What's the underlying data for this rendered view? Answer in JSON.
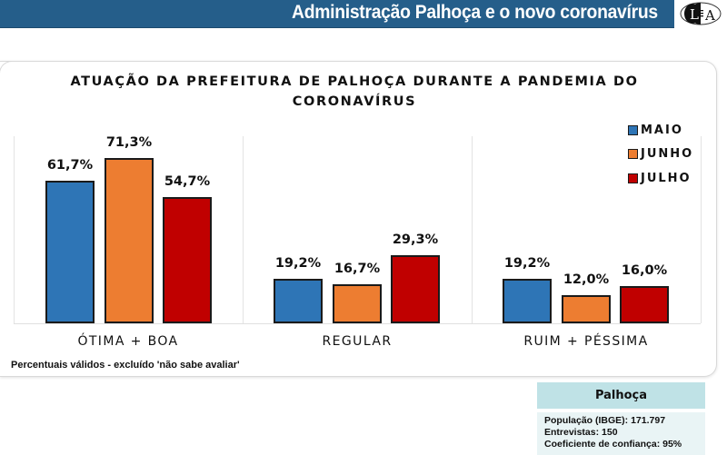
{
  "header": {
    "title": "Administração Palhoça e o novo coronavírus",
    "logo_text": "LEA",
    "bar_color": "#255e8a"
  },
  "chart_data": {
    "type": "bar",
    "title": "ATUAÇÃO DA PREFEITURA DE PALHOÇA DURANTE A PANDEMIA DO CORONAVÍRUS",
    "title_lines": [
      "ATUAÇÃO DA PREFEITURA DE PALHOÇA DURANTE A PANDEMIA DO",
      "CORONAVÍRUS"
    ],
    "categories": [
      "ÓTIMA + BOA",
      "REGULAR",
      "RUIM + PÉSSIMA"
    ],
    "series": [
      {
        "name": "MAIO",
        "color": "#2e75b6",
        "values": [
          61.7,
          19.2,
          19.2
        ],
        "labels": [
          "61,7%",
          "19,2%",
          "19,2%"
        ]
      },
      {
        "name": "JUNHO",
        "color": "#ed7d31",
        "values": [
          71.3,
          16.7,
          12.0
        ],
        "labels": [
          "71,3%",
          "16,7%",
          "12,0%"
        ]
      },
      {
        "name": "JULHO",
        "color": "#c00000",
        "values": [
          54.7,
          29.3,
          16.0
        ],
        "labels": [
          "54,7%",
          "29,3%",
          "16,0%"
        ]
      }
    ],
    "xlabel": "",
    "ylabel": "",
    "ylim": [
      0,
      80
    ],
    "grid": false,
    "legend_position": "right",
    "unit": "%"
  },
  "footnote": "Percentuais válidos - excluído 'não sabe avaliar'",
  "info_box": {
    "title": "Palhoça",
    "lines": [
      "População (IBGE): 171.797",
      "Entrevistas: 150",
      "Coeficiente de confiança: 95%"
    ]
  }
}
